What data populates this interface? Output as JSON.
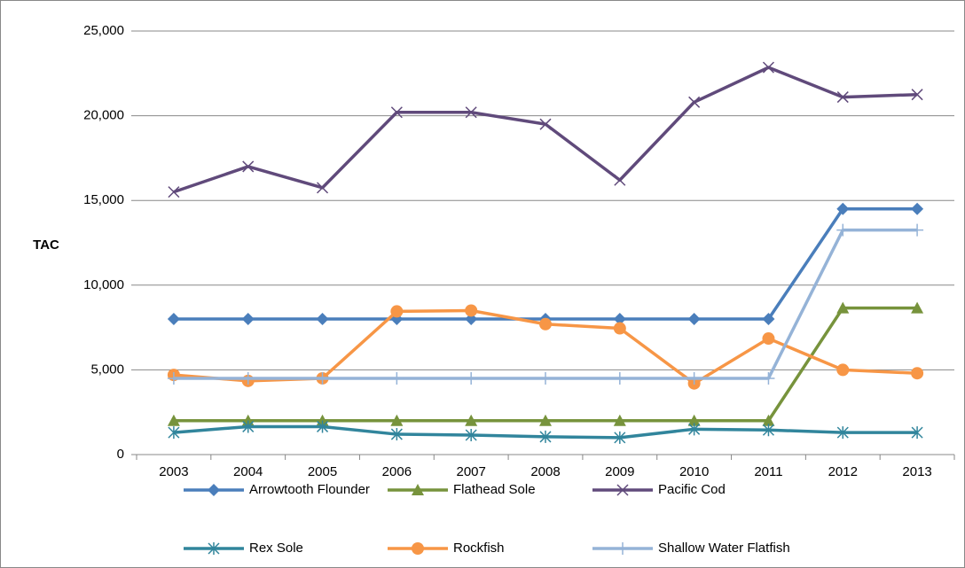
{
  "chart_data": {
    "type": "line",
    "y_label": "TAC",
    "categories": [
      "2003",
      "2004",
      "2005",
      "2006",
      "2007",
      "2008",
      "2009",
      "2010",
      "2011",
      "2012",
      "2013"
    ],
    "ylim": [
      0,
      25000
    ],
    "yticks": [
      {
        "value": 0,
        "label": "0"
      },
      {
        "value": 5000,
        "label": "5,000"
      },
      {
        "value": 10000,
        "label": "10,000"
      },
      {
        "value": 15000,
        "label": "15,000"
      },
      {
        "value": 20000,
        "label": "20,000"
      },
      {
        "value": 25000,
        "label": "25,000"
      }
    ],
    "grid": true,
    "legend": "bottom",
    "series": [
      {
        "name": "Arrowtooth Flounder",
        "color": "#4a7ebb",
        "marker": "diamond",
        "values": [
          8000,
          8000,
          8000,
          8000,
          8000,
          8000,
          8000,
          8000,
          8000,
          14500,
          14500
        ]
      },
      {
        "name": "Flathead Sole",
        "color": "#77933c",
        "marker": "triangle",
        "values": [
          2000,
          2000,
          2000,
          2000,
          2000,
          2000,
          2000,
          2000,
          2000,
          8650,
          8650
        ]
      },
      {
        "name": "Pacific Cod",
        "color": "#604a7b",
        "marker": "x",
        "values": [
          15500,
          17000,
          15750,
          20200,
          20200,
          19500,
          16200,
          20800,
          22850,
          21100,
          21250
        ]
      },
      {
        "name": "Rex Sole",
        "color": "#31859c",
        "marker": "star",
        "values": [
          1300,
          1650,
          1650,
          1200,
          1150,
          1050,
          1000,
          1500,
          1450,
          1300,
          1300
        ]
      },
      {
        "name": "Rockfish",
        "color": "#f79646",
        "marker": "circle",
        "values": [
          4700,
          4350,
          4500,
          8450,
          8500,
          7700,
          7450,
          4200,
          6850,
          5000,
          4800
        ]
      },
      {
        "name": "Shallow Water Flatfish",
        "color": "#95b3d7",
        "marker": "plus",
        "values": [
          4500,
          4500,
          4500,
          4500,
          4500,
          4500,
          4500,
          4500,
          4500,
          13250,
          13250
        ]
      }
    ]
  }
}
